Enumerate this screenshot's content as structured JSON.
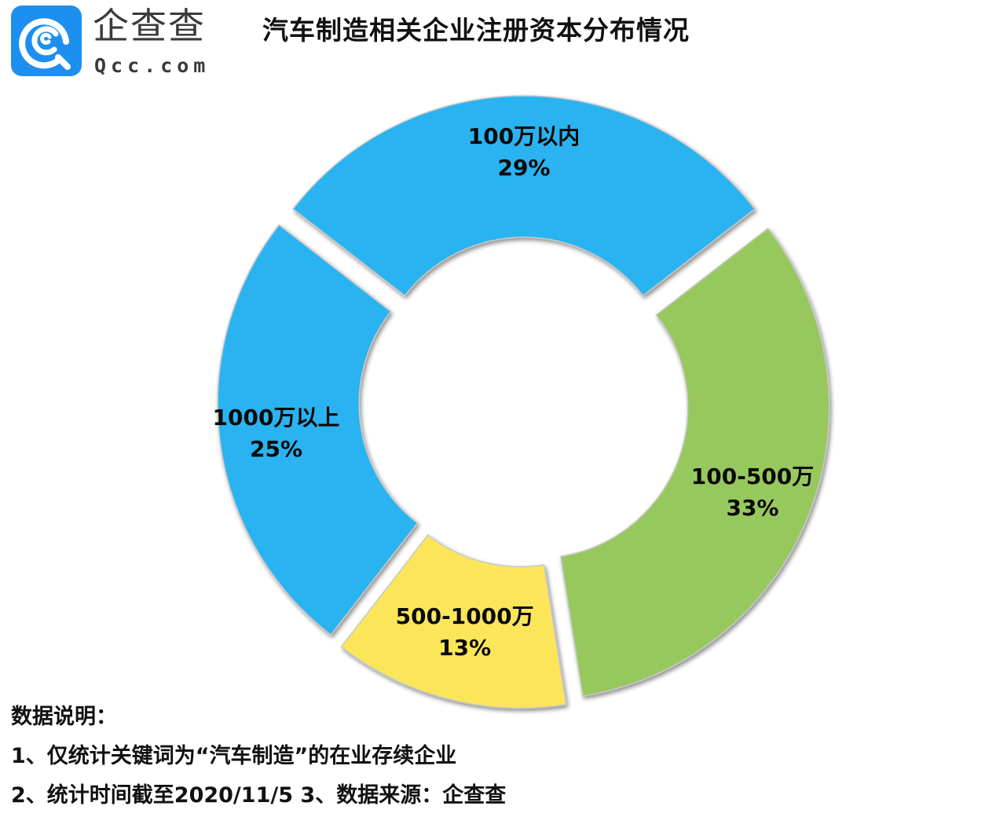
{
  "logo": {
    "icon": "qcc-logo-icon",
    "name_cn": "企查查",
    "name_en": "Qcc.com",
    "brand_color": "#1d8ff0"
  },
  "title": "汽车制造相关企业注册资本分布情况",
  "chart_data": {
    "type": "pie",
    "subtype": "donut-exploded",
    "title": "汽车制造相关企业注册资本分布情况",
    "start_angle_deg": -52.2,
    "direction": "clockwise",
    "categories": [
      "100万以内",
      "100-500万",
      "500-1000万",
      "1000万以上"
    ],
    "values": [
      29,
      33,
      13,
      25
    ],
    "labels": [
      "29%",
      "33%",
      "13%",
      "25%"
    ],
    "colors": [
      "#2cb3f1",
      "#97c85d",
      "#fbe65a",
      "#2cb3f1"
    ],
    "unit": "%",
    "legend": "none (labels inside slices)"
  },
  "notes": {
    "heading": "数据说明：",
    "items": [
      "1、仅统计关键词为“汽车制造”的在业存续企业",
      "2、统计时间截至2020/11/5   3、数据来源：企查查"
    ]
  }
}
